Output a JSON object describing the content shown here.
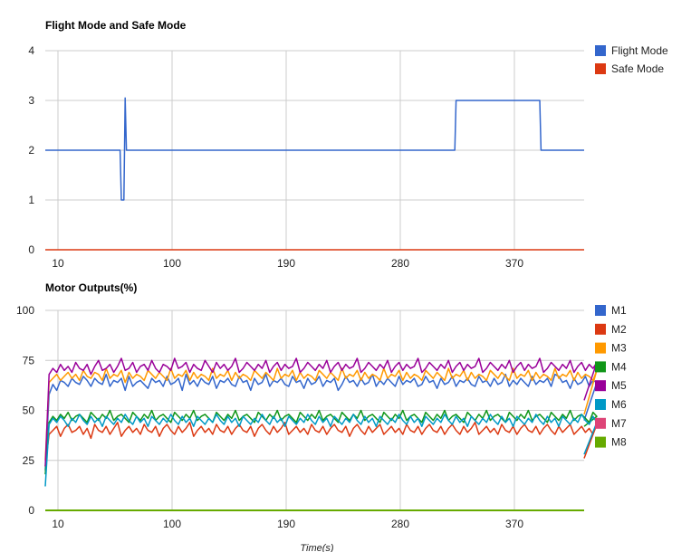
{
  "chart_data": [
    {
      "type": "line",
      "title": "Flight Mode and Safe Mode",
      "xlabel": "",
      "ylabel": "",
      "xlim": [
        0,
        425
      ],
      "ylim": [
        0,
        4
      ],
      "x_ticks": [
        "10",
        "100",
        "190",
        "280",
        "370"
      ],
      "x_tick_values": [
        10,
        100,
        190,
        280,
        370
      ],
      "y_ticks": [
        "0",
        "1",
        "2",
        "3",
        "4"
      ],
      "y_tick_values": [
        0,
        1,
        2,
        3,
        4
      ],
      "grid": true,
      "legend_position": "right",
      "series": [
        {
          "name": "Flight Mode",
          "color": "#3366cc",
          "points": [
            [
              0,
              2
            ],
            [
              59,
              2
            ],
            [
              60,
              1
            ],
            [
              62,
              1
            ],
            [
              63,
              3.05
            ],
            [
              64,
              2
            ],
            [
              323,
              2
            ],
            [
              324,
              3
            ],
            [
              390,
              3
            ],
            [
              391,
              2
            ],
            [
              425,
              2
            ]
          ]
        },
        {
          "name": "Safe Mode",
          "color": "#dc3912",
          "points": [
            [
              0,
              0
            ],
            [
              425,
              0
            ]
          ]
        }
      ]
    },
    {
      "type": "line",
      "title": "Motor Outputs(%)",
      "xlabel": "Time(s)",
      "ylabel": "",
      "xlim": [
        0,
        425
      ],
      "ylim": [
        0,
        100
      ],
      "x_ticks": [
        "10",
        "100",
        "190",
        "280",
        "370"
      ],
      "x_tick_values": [
        10,
        100,
        190,
        280,
        370
      ],
      "y_ticks": [
        "0",
        "25",
        "50",
        "75",
        "100"
      ],
      "y_tick_values": [
        0,
        25,
        50,
        75,
        100
      ],
      "grid": true,
      "legend_position": "right",
      "x_start": 0,
      "x_step": 3,
      "series": [
        {
          "name": "M1",
          "color": "#3366cc",
          "values": [
            20,
            58,
            63,
            60,
            65,
            64,
            62,
            66,
            64,
            63,
            67,
            65,
            62,
            66,
            64,
            63,
            68,
            62,
            65,
            64,
            66,
            60,
            67,
            62,
            64,
            65,
            63,
            61,
            66,
            64,
            65,
            62,
            67,
            63,
            64,
            66,
            60,
            68,
            63,
            65,
            62,
            66,
            64,
            63,
            67,
            61,
            65,
            64,
            66,
            63,
            62,
            67,
            64,
            65,
            60,
            66,
            63,
            64,
            68,
            62,
            65,
            64,
            66,
            63,
            62,
            67,
            64,
            65,
            61,
            66,
            63,
            64,
            67,
            62,
            65,
            64,
            66,
            60,
            63,
            67,
            64,
            65,
            62,
            66,
            63,
            64,
            68,
            62,
            65,
            63,
            66,
            64,
            62,
            67,
            63,
            65,
            64,
            66,
            62,
            63,
            67,
            64,
            65,
            61,
            66,
            63,
            64,
            67,
            62,
            65,
            64,
            66,
            63,
            62,
            67,
            64,
            65,
            62,
            66,
            63,
            64,
            68,
            62,
            65,
            63,
            66,
            64,
            62,
            67,
            63,
            65,
            64,
            66,
            62,
            68,
            67,
            64,
            65,
            61,
            66,
            63,
            64,
            67,
            62,
            65,
            64,
            45
          ]
        },
        {
          "name": "M2",
          "color": "#dc3912",
          "values": [
            22,
            38,
            40,
            42,
            37,
            41,
            43,
            39,
            40,
            42,
            38,
            41,
            36,
            43,
            40,
            39,
            42,
            38,
            41,
            44,
            37,
            40,
            42,
            39,
            41,
            38,
            43,
            40,
            39,
            42,
            37,
            41,
            43,
            40,
            38,
            42,
            39,
            41,
            44,
            37,
            40,
            42,
            39,
            41,
            38,
            43,
            40,
            39,
            42,
            38,
            41,
            43,
            40,
            39,
            42,
            37,
            41,
            43,
            40,
            38,
            42,
            39,
            41,
            44,
            38,
            40,
            42,
            39,
            41,
            38,
            43,
            40,
            39,
            42,
            38,
            41,
            43,
            40,
            39,
            42,
            37,
            41,
            43,
            40,
            38,
            42,
            39,
            41,
            43,
            38,
            40,
            42,
            39,
            41,
            38,
            43,
            40,
            39,
            42,
            38,
            41,
            43,
            40,
            39,
            42,
            38,
            41,
            43,
            40,
            38,
            42,
            39,
            41,
            44,
            38,
            40,
            42,
            39,
            41,
            38,
            43,
            40,
            39,
            42,
            38,
            41,
            43,
            40,
            39,
            42,
            38,
            41,
            43,
            40,
            38,
            42,
            39,
            41,
            43,
            38,
            40,
            42,
            39,
            41,
            38,
            43,
            26
          ]
        },
        {
          "name": "M3",
          "color": "#ff9900",
          "values": [
            25,
            64,
            66,
            68,
            65,
            67,
            69,
            66,
            68,
            65,
            70,
            67,
            66,
            69,
            68,
            65,
            71,
            66,
            68,
            67,
            70,
            64,
            69,
            66,
            68,
            67,
            65,
            70,
            68,
            66,
            69,
            67,
            65,
            71,
            66,
            68,
            67,
            70,
            65,
            69,
            66,
            68,
            67,
            65,
            71,
            66,
            68,
            67,
            70,
            65,
            69,
            66,
            68,
            67,
            65,
            70,
            68,
            66,
            69,
            67,
            65,
            71,
            66,
            68,
            67,
            70,
            65,
            69,
            66,
            68,
            67,
            65,
            70,
            68,
            66,
            69,
            67,
            65,
            71,
            66,
            68,
            67,
            70,
            65,
            69,
            66,
            68,
            67,
            65,
            71,
            66,
            68,
            67,
            70,
            65,
            69,
            66,
            68,
            67,
            65,
            70,
            68,
            66,
            69,
            67,
            65,
            71,
            66,
            68,
            67,
            70,
            65,
            69,
            66,
            68,
            67,
            65,
            70,
            68,
            66,
            69,
            67,
            65,
            71,
            66,
            68,
            67,
            70,
            65,
            69,
            66,
            68,
            67,
            65,
            71,
            66,
            68,
            67,
            70,
            65,
            69,
            66,
            68,
            67,
            65,
            70,
            48
          ]
        },
        {
          "name": "M4",
          "color": "#109618",
          "values": [
            18,
            44,
            47,
            45,
            48,
            46,
            49,
            45,
            47,
            48,
            46,
            44,
            49,
            47,
            45,
            48,
            46,
            50,
            45,
            47,
            48,
            46,
            44,
            49,
            47,
            45,
            48,
            46,
            50,
            45,
            47,
            48,
            46,
            44,
            49,
            47,
            45,
            48,
            46,
            50,
            45,
            47,
            48,
            46,
            44,
            49,
            47,
            45,
            48,
            46,
            50,
            45,
            47,
            48,
            46,
            44,
            49,
            47,
            45,
            48,
            46,
            50,
            45,
            47,
            48,
            46,
            44,
            49,
            47,
            45,
            48,
            46,
            50,
            45,
            47,
            48,
            46,
            44,
            49,
            47,
            45,
            48,
            46,
            50,
            45,
            47,
            48,
            46,
            44,
            49,
            47,
            45,
            48,
            46,
            50,
            45,
            47,
            48,
            46,
            44,
            49,
            47,
            45,
            48,
            46,
            50,
            45,
            47,
            48,
            46,
            44,
            49,
            47,
            45,
            48,
            46,
            50,
            45,
            47,
            48,
            46,
            44,
            49,
            47,
            45,
            48,
            46,
            50,
            45,
            47,
            48,
            46,
            44,
            49,
            47,
            45,
            48,
            46,
            50,
            45,
            47,
            48,
            46,
            44,
            49,
            47,
            42
          ]
        },
        {
          "name": "M5",
          "color": "#990099",
          "values": [
            22,
            68,
            71,
            69,
            73,
            70,
            72,
            69,
            74,
            71,
            70,
            73,
            68,
            72,
            75,
            70,
            71,
            73,
            69,
            72,
            76,
            70,
            71,
            74,
            69,
            72,
            73,
            70,
            75,
            71,
            69,
            73,
            72,
            70,
            76,
            71,
            72,
            74,
            69,
            73,
            71,
            70,
            75,
            72,
            69,
            74,
            71,
            73,
            70,
            72,
            76,
            69,
            71,
            74,
            72,
            70,
            73,
            71,
            75,
            69,
            72,
            74,
            70,
            73,
            71,
            72,
            76,
            69,
            71,
            74,
            72,
            70,
            73,
            71,
            75,
            69,
            72,
            74,
            70,
            73,
            71,
            72,
            76,
            69,
            71,
            74,
            72,
            70,
            73,
            71,
            75,
            69,
            72,
            74,
            70,
            73,
            71,
            72,
            76,
            69,
            71,
            74,
            72,
            70,
            73,
            71,
            75,
            69,
            72,
            74,
            70,
            73,
            71,
            72,
            76,
            69,
            71,
            74,
            72,
            70,
            73,
            71,
            75,
            69,
            72,
            74,
            70,
            73,
            71,
            72,
            76,
            69,
            71,
            74,
            72,
            70,
            73,
            71,
            75,
            69,
            72,
            74,
            70,
            73,
            71,
            74,
            55
          ]
        },
        {
          "name": "M6",
          "color": "#0099c6",
          "values": [
            12,
            43,
            46,
            44,
            47,
            45,
            42,
            46,
            44,
            48,
            45,
            43,
            47,
            44,
            46,
            42,
            47,
            45,
            43,
            46,
            44,
            48,
            45,
            43,
            47,
            44,
            46,
            42,
            47,
            45,
            43,
            46,
            44,
            48,
            45,
            43,
            47,
            44,
            46,
            42,
            47,
            45,
            43,
            46,
            44,
            48,
            45,
            43,
            47,
            44,
            46,
            42,
            47,
            45,
            43,
            46,
            44,
            48,
            45,
            43,
            47,
            44,
            46,
            42,
            47,
            45,
            43,
            46,
            44,
            48,
            45,
            43,
            47,
            44,
            46,
            42,
            47,
            45,
            43,
            46,
            44,
            48,
            45,
            43,
            47,
            44,
            46,
            42,
            47,
            45,
            43,
            46,
            44,
            48,
            45,
            43,
            47,
            44,
            46,
            42,
            47,
            45,
            43,
            46,
            44,
            48,
            45,
            43,
            47,
            44,
            46,
            42,
            47,
            45,
            43,
            46,
            44,
            48,
            45,
            43,
            47,
            44,
            46,
            42,
            47,
            45,
            43,
            46,
            44,
            48,
            45,
            43,
            47,
            44,
            46,
            42,
            47,
            45,
            43,
            46,
            44,
            48,
            45,
            43,
            47,
            44,
            28
          ]
        },
        {
          "name": "M7",
          "color": "#dd4477",
          "values": []
        },
        {
          "name": "M8",
          "color": "#66aa00",
          "flat": 0
        }
      ]
    }
  ]
}
